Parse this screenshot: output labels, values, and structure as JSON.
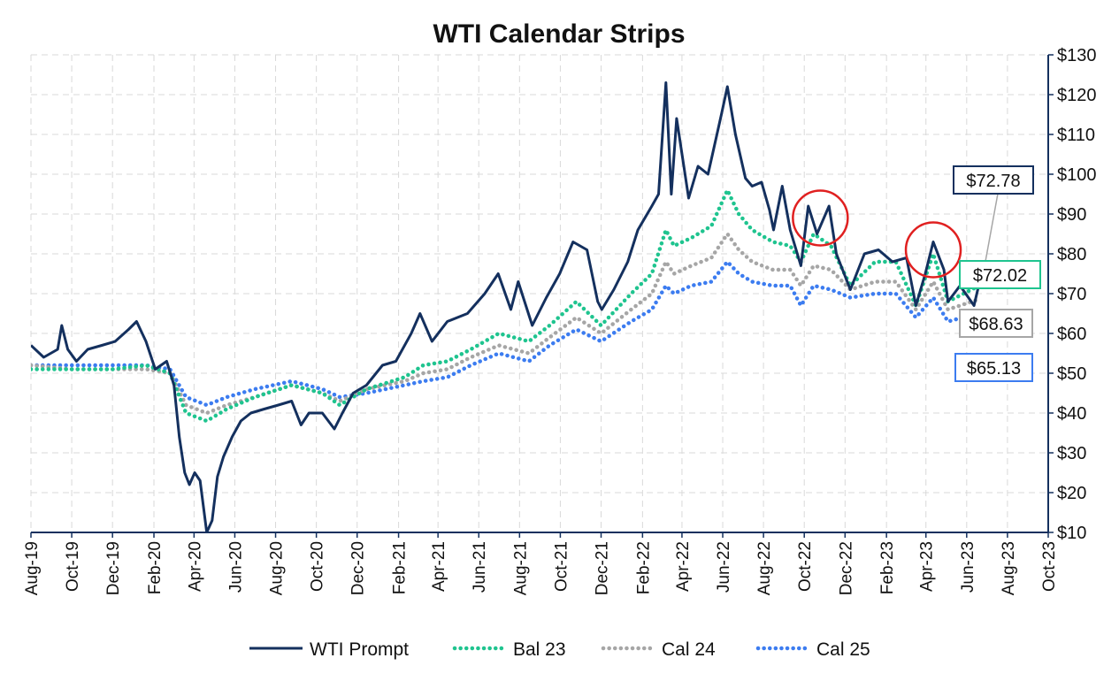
{
  "chart_data": {
    "type": "line",
    "title": "WTI Calendar Strips",
    "xlabel": "",
    "ylabel": "",
    "x_range": [
      "2019-08-01",
      "2023-10-01"
    ],
    "ylim": [
      10,
      130
    ],
    "y_ticks": [
      10,
      20,
      30,
      40,
      50,
      60,
      70,
      80,
      90,
      100,
      110,
      120,
      130
    ],
    "y_tick_labels": [
      "$10",
      "$20",
      "$30",
      "$40",
      "$50",
      "$60",
      "$70",
      "$80",
      "$90",
      "$100",
      "$110",
      "$120",
      "$130"
    ],
    "x_ticks": [
      "2019-08-01",
      "2019-10-01",
      "2019-12-01",
      "2020-02-01",
      "2020-04-01",
      "2020-06-01",
      "2020-08-01",
      "2020-10-01",
      "2020-12-01",
      "2021-02-01",
      "2021-04-01",
      "2021-06-01",
      "2021-08-01",
      "2021-10-01",
      "2021-12-01",
      "2022-02-01",
      "2022-04-01",
      "2022-06-01",
      "2022-08-01",
      "2022-10-01",
      "2022-12-01",
      "2023-02-01",
      "2023-04-01",
      "2023-06-01",
      "2023-08-01",
      "2023-10-01"
    ],
    "x_tick_labels": [
      "Aug-19",
      "Oct-19",
      "Dec-19",
      "Feb-20",
      "Apr-20",
      "Jun-20",
      "Aug-20",
      "Oct-20",
      "Dec-20",
      "Feb-21",
      "Apr-21",
      "Jun-21",
      "Aug-21",
      "Oct-21",
      "Dec-21",
      "Feb-22",
      "Apr-22",
      "Jun-22",
      "Aug-22",
      "Oct-22",
      "Dec-22",
      "Feb-23",
      "Apr-23",
      "Jun-23",
      "Aug-23",
      "Oct-23"
    ],
    "grid": true,
    "y_axis_position": "right",
    "legend_position": "bottom",
    "series": [
      {
        "name": "WTI Prompt",
        "color": "#14305e",
        "style": "solid",
        "points": [
          [
            "2019-08-01",
            57
          ],
          [
            "2019-08-20",
            54
          ],
          [
            "2019-09-10",
            56
          ],
          [
            "2019-09-16",
            62
          ],
          [
            "2019-09-25",
            56
          ],
          [
            "2019-10-08",
            53
          ],
          [
            "2019-10-25",
            56
          ],
          [
            "2019-11-15",
            57
          ],
          [
            "2019-12-05",
            58
          ],
          [
            "2019-12-25",
            61
          ],
          [
            "2020-01-06",
            63
          ],
          [
            "2020-01-20",
            58
          ],
          [
            "2020-02-03",
            51
          ],
          [
            "2020-02-20",
            53
          ],
          [
            "2020-03-02",
            47
          ],
          [
            "2020-03-10",
            34
          ],
          [
            "2020-03-18",
            25
          ],
          [
            "2020-03-25",
            22
          ],
          [
            "2020-04-02",
            25
          ],
          [
            "2020-04-10",
            23
          ],
          [
            "2020-04-20",
            10
          ],
          [
            "2020-04-28",
            13
          ],
          [
            "2020-05-06",
            24
          ],
          [
            "2020-05-15",
            29
          ],
          [
            "2020-05-28",
            34
          ],
          [
            "2020-06-10",
            38
          ],
          [
            "2020-06-25",
            40
          ],
          [
            "2020-07-15",
            41
          ],
          [
            "2020-08-05",
            42
          ],
          [
            "2020-08-25",
            43
          ],
          [
            "2020-09-08",
            37
          ],
          [
            "2020-09-20",
            40
          ],
          [
            "2020-10-10",
            40
          ],
          [
            "2020-10-28",
            36
          ],
          [
            "2020-11-09",
            40
          ],
          [
            "2020-11-25",
            45
          ],
          [
            "2020-12-15",
            47
          ],
          [
            "2021-01-08",
            52
          ],
          [
            "2021-01-28",
            53
          ],
          [
            "2021-02-20",
            60
          ],
          [
            "2021-03-05",
            65
          ],
          [
            "2021-03-23",
            58
          ],
          [
            "2021-04-15",
            63
          ],
          [
            "2021-05-15",
            65
          ],
          [
            "2021-06-10",
            70
          ],
          [
            "2021-06-30",
            75
          ],
          [
            "2021-07-19",
            66
          ],
          [
            "2021-07-30",
            73
          ],
          [
            "2021-08-20",
            62
          ],
          [
            "2021-09-10",
            69
          ],
          [
            "2021-09-30",
            75
          ],
          [
            "2021-10-20",
            83
          ],
          [
            "2021-11-10",
            81
          ],
          [
            "2021-11-26",
            68
          ],
          [
            "2021-12-02",
            66
          ],
          [
            "2021-12-20",
            71
          ],
          [
            "2022-01-10",
            78
          ],
          [
            "2022-01-25",
            86
          ],
          [
            "2022-02-15",
            92
          ],
          [
            "2022-02-25",
            95
          ],
          [
            "2022-03-08",
            123
          ],
          [
            "2022-03-16",
            95
          ],
          [
            "2022-03-24",
            114
          ],
          [
            "2022-04-11",
            94
          ],
          [
            "2022-04-25",
            102
          ],
          [
            "2022-05-10",
            100
          ],
          [
            "2022-05-30",
            115
          ],
          [
            "2022-06-08",
            122
          ],
          [
            "2022-06-20",
            110
          ],
          [
            "2022-07-05",
            99
          ],
          [
            "2022-07-15",
            97
          ],
          [
            "2022-07-29",
            98
          ],
          [
            "2022-08-10",
            91
          ],
          [
            "2022-08-16",
            86
          ],
          [
            "2022-08-29",
            97
          ],
          [
            "2022-09-10",
            86
          ],
          [
            "2022-09-26",
            77
          ],
          [
            "2022-10-07",
            92
          ],
          [
            "2022-10-20",
            85
          ],
          [
            "2022-11-07",
            92
          ],
          [
            "2022-11-18",
            80
          ],
          [
            "2022-12-09",
            71
          ],
          [
            "2022-12-30",
            80
          ],
          [
            "2023-01-20",
            81
          ],
          [
            "2023-02-10",
            78
          ],
          [
            "2023-03-03",
            79
          ],
          [
            "2023-03-17",
            67
          ],
          [
            "2023-03-31",
            75
          ],
          [
            "2023-04-12",
            83
          ],
          [
            "2023-04-28",
            76
          ],
          [
            "2023-05-04",
            68
          ],
          [
            "2023-05-22",
            72
          ],
          [
            "2023-06-12",
            67
          ],
          [
            "2023-06-20",
            72.78
          ]
        ]
      },
      {
        "name": "Bal 23",
        "color": "#1fc48f",
        "style": "dotted",
        "points": [
          [
            "2019-08-01",
            51
          ],
          [
            "2019-10-01",
            51
          ],
          [
            "2019-12-01",
            51
          ],
          [
            "2020-01-20",
            52
          ],
          [
            "2020-02-25",
            50
          ],
          [
            "2020-03-20",
            40
          ],
          [
            "2020-04-20",
            38
          ],
          [
            "2020-05-20",
            41
          ],
          [
            "2020-07-01",
            44
          ],
          [
            "2020-08-25",
            47
          ],
          [
            "2020-10-10",
            45
          ],
          [
            "2020-11-05",
            42
          ],
          [
            "2020-12-15",
            46
          ],
          [
            "2021-02-10",
            49
          ],
          [
            "2021-03-10",
            52
          ],
          [
            "2021-04-15",
            53
          ],
          [
            "2021-05-20",
            56
          ],
          [
            "2021-07-01",
            60
          ],
          [
            "2021-08-15",
            58
          ],
          [
            "2021-09-15",
            62
          ],
          [
            "2021-10-25",
            68
          ],
          [
            "2021-12-01",
            62
          ],
          [
            "2022-01-15",
            70
          ],
          [
            "2022-02-15",
            75
          ],
          [
            "2022-03-08",
            86
          ],
          [
            "2022-03-20",
            82
          ],
          [
            "2022-04-15",
            84
          ],
          [
            "2022-05-15",
            87
          ],
          [
            "2022-06-08",
            96
          ],
          [
            "2022-06-25",
            90
          ],
          [
            "2022-07-15",
            86
          ],
          [
            "2022-08-15",
            83
          ],
          [
            "2022-09-10",
            82
          ],
          [
            "2022-09-26",
            78
          ],
          [
            "2022-10-15",
            85
          ],
          [
            "2022-11-10",
            82
          ],
          [
            "2022-12-09",
            72
          ],
          [
            "2023-01-15",
            78
          ],
          [
            "2023-02-15",
            78
          ],
          [
            "2023-03-17",
            67
          ],
          [
            "2023-04-12",
            80
          ],
          [
            "2023-05-04",
            68
          ],
          [
            "2023-06-20",
            72.02
          ]
        ]
      },
      {
        "name": "Cal 24",
        "color": "#a6a6a6",
        "style": "dotted",
        "points": [
          [
            "2019-08-01",
            52
          ],
          [
            "2019-10-01",
            51
          ],
          [
            "2019-12-01",
            51
          ],
          [
            "2020-01-20",
            51
          ],
          [
            "2020-02-25",
            50
          ],
          [
            "2020-03-20",
            42
          ],
          [
            "2020-04-20",
            40
          ],
          [
            "2020-05-20",
            42
          ],
          [
            "2020-07-01",
            44
          ],
          [
            "2020-08-25",
            47
          ],
          [
            "2020-10-10",
            45
          ],
          [
            "2020-11-05",
            43
          ],
          [
            "2020-12-15",
            46
          ],
          [
            "2021-02-10",
            48
          ],
          [
            "2021-03-10",
            50
          ],
          [
            "2021-04-15",
            51
          ],
          [
            "2021-05-20",
            54
          ],
          [
            "2021-07-01",
            57
          ],
          [
            "2021-08-15",
            55
          ],
          [
            "2021-09-15",
            59
          ],
          [
            "2021-10-25",
            64
          ],
          [
            "2021-12-01",
            60
          ],
          [
            "2022-01-15",
            66
          ],
          [
            "2022-02-15",
            70
          ],
          [
            "2022-03-08",
            78
          ],
          [
            "2022-03-20",
            75
          ],
          [
            "2022-04-15",
            77
          ],
          [
            "2022-05-15",
            79
          ],
          [
            "2022-06-08",
            85
          ],
          [
            "2022-06-25",
            81
          ],
          [
            "2022-07-15",
            78
          ],
          [
            "2022-08-15",
            76
          ],
          [
            "2022-09-10",
            76
          ],
          [
            "2022-09-26",
            72
          ],
          [
            "2022-10-15",
            77
          ],
          [
            "2022-11-10",
            76
          ],
          [
            "2022-12-09",
            71
          ],
          [
            "2023-01-15",
            73
          ],
          [
            "2023-02-15",
            73
          ],
          [
            "2023-03-17",
            66
          ],
          [
            "2023-04-12",
            73
          ],
          [
            "2023-05-04",
            66
          ],
          [
            "2023-06-20",
            68.63
          ]
        ]
      },
      {
        "name": "Cal 25",
        "color": "#3c7cf0",
        "style": "dotted",
        "points": [
          [
            "2019-08-01",
            52
          ],
          [
            "2019-10-01",
            52
          ],
          [
            "2019-12-01",
            52
          ],
          [
            "2020-01-20",
            52
          ],
          [
            "2020-02-25",
            51
          ],
          [
            "2020-03-20",
            44
          ],
          [
            "2020-04-20",
            42
          ],
          [
            "2020-05-20",
            44
          ],
          [
            "2020-07-01",
            46
          ],
          [
            "2020-08-25",
            48
          ],
          [
            "2020-10-10",
            46
          ],
          [
            "2020-11-05",
            44
          ],
          [
            "2020-12-15",
            45
          ],
          [
            "2021-02-10",
            47
          ],
          [
            "2021-03-10",
            48
          ],
          [
            "2021-04-15",
            49
          ],
          [
            "2021-05-20",
            52
          ],
          [
            "2021-07-01",
            55
          ],
          [
            "2021-08-15",
            53
          ],
          [
            "2021-09-15",
            57
          ],
          [
            "2021-10-25",
            61
          ],
          [
            "2021-12-01",
            58
          ],
          [
            "2022-01-15",
            63
          ],
          [
            "2022-02-15",
            66
          ],
          [
            "2022-03-08",
            72
          ],
          [
            "2022-03-20",
            70
          ],
          [
            "2022-04-15",
            72
          ],
          [
            "2022-05-15",
            73
          ],
          [
            "2022-06-08",
            78
          ],
          [
            "2022-06-25",
            75
          ],
          [
            "2022-07-15",
            73
          ],
          [
            "2022-08-15",
            72
          ],
          [
            "2022-09-10",
            72
          ],
          [
            "2022-09-26",
            67
          ],
          [
            "2022-10-15",
            72
          ],
          [
            "2022-11-10",
            71
          ],
          [
            "2022-12-09",
            69
          ],
          [
            "2023-01-15",
            70
          ],
          [
            "2023-02-15",
            70
          ],
          [
            "2023-03-17",
            64
          ],
          [
            "2023-04-12",
            69
          ],
          [
            "2023-05-04",
            63
          ],
          [
            "2023-06-20",
            65.13
          ]
        ]
      }
    ],
    "callouts": [
      {
        "series": "WTI Prompt",
        "text": "$72.78",
        "border": "#14305e"
      },
      {
        "series": "Bal 23",
        "text": "$72.02",
        "border": "#1fc48f"
      },
      {
        "series": "Cal 24",
        "text": "$68.63",
        "border": "#a6a6a6"
      },
      {
        "series": "Cal 25",
        "text": "$65.13",
        "border": "#3c7cf0"
      }
    ],
    "highlight_circles": [
      {
        "center": [
          "2022-10-25",
          89
        ],
        "color": "#e02020"
      },
      {
        "center": [
          "2023-04-12",
          81
        ],
        "color": "#e02020"
      }
    ]
  }
}
